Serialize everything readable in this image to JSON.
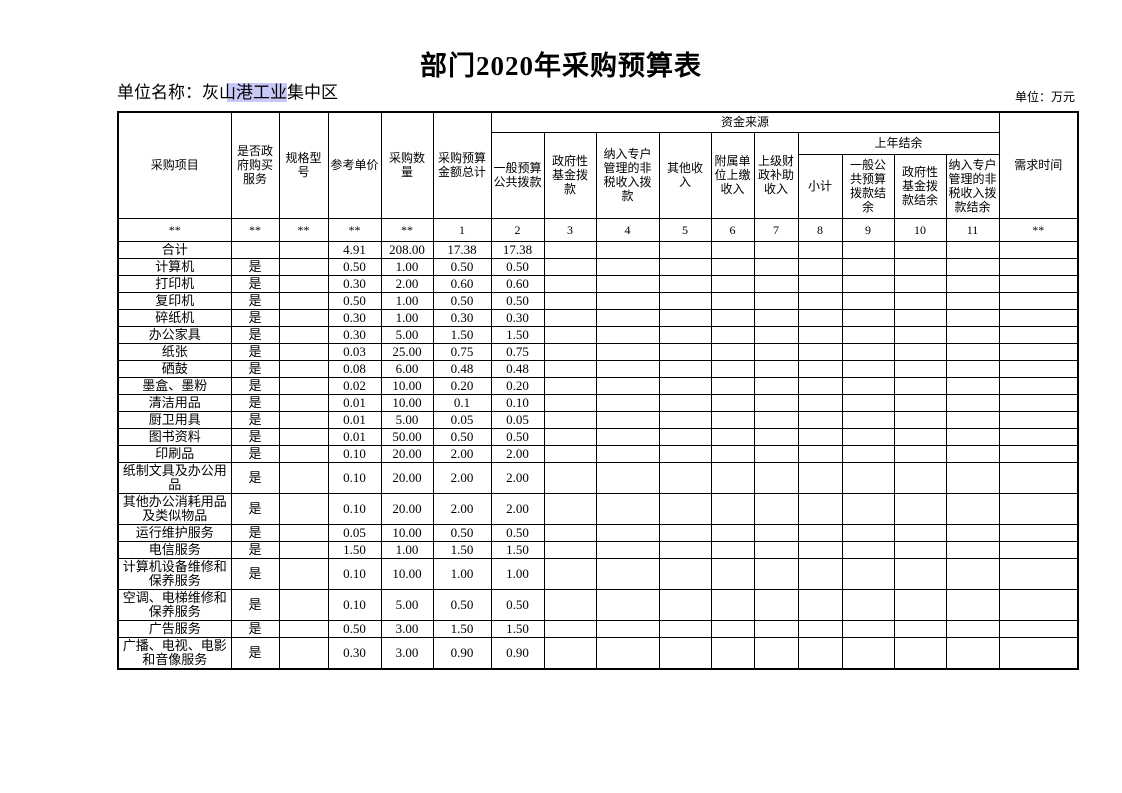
{
  "page": {
    "title": "部门2020年采购预算表",
    "unit_label": "单位名称：",
    "unit_name_pre": "灰",
    "unit_name_selected": "山港工业",
    "unit_name_post": "集中区",
    "unit_note": "单位：万元",
    "selection_highlight_color": "#c7c8f8"
  },
  "table": {
    "header": {
      "col_project": "采购项目",
      "col_gov_service": "是否政府购买服务",
      "col_spec": "规格型号",
      "col_unit_price": "参考单价",
      "col_quantity": "采购数量",
      "col_budget_total": "采购预算金额总计",
      "funding_source": "资金来源",
      "col_general_budget": "一般预算公共拨款",
      "col_gov_fund": "政府性基金拨款",
      "col_special_account": "纳入专户管理的非税收入拨款",
      "col_other_income": "其他收入",
      "col_subordinate_income": "附属单位上缴收入",
      "col_superior_subsidy": "上级财政补助收入",
      "last_year_balance": "上年结余",
      "col_subtotal": "小计",
      "col_general_balance": "一般公共预算拨款结余",
      "col_fund_balance": "政府性基金拨款结余",
      "col_special_balance": "纳入专户管理的非税收入拨款结余",
      "col_demand_time": "需求时间"
    },
    "id_row": [
      "**",
      "**",
      "**",
      "**",
      "**",
      "1",
      "2",
      "3",
      "4",
      "5",
      "6",
      "7",
      "8",
      "9",
      "10",
      "11",
      "**"
    ],
    "rows": [
      [
        "合计",
        "",
        "",
        "4.91",
        "208.00",
        "17.38",
        "17.38",
        "",
        "",
        "",
        "",
        "",
        "",
        "",
        "",
        "",
        ""
      ],
      [
        "计算机",
        "是",
        "",
        "0.50",
        "1.00",
        "0.50",
        "0.50",
        "",
        "",
        "",
        "",
        "",
        "",
        "",
        "",
        "",
        ""
      ],
      [
        "打印机",
        "是",
        "",
        "0.30",
        "2.00",
        "0.60",
        "0.60",
        "",
        "",
        "",
        "",
        "",
        "",
        "",
        "",
        "",
        ""
      ],
      [
        "复印机",
        "是",
        "",
        "0.50",
        "1.00",
        "0.50",
        "0.50",
        "",
        "",
        "",
        "",
        "",
        "",
        "",
        "",
        "",
        ""
      ],
      [
        "碎纸机",
        "是",
        "",
        "0.30",
        "1.00",
        "0.30",
        "0.30",
        "",
        "",
        "",
        "",
        "",
        "",
        "",
        "",
        "",
        ""
      ],
      [
        "办公家具",
        "是",
        "",
        "0.30",
        "5.00",
        "1.50",
        "1.50",
        "",
        "",
        "",
        "",
        "",
        "",
        "",
        "",
        "",
        ""
      ],
      [
        "纸张",
        "是",
        "",
        "0.03",
        "25.00",
        "0.75",
        "0.75",
        "",
        "",
        "",
        "",
        "",
        "",
        "",
        "",
        "",
        ""
      ],
      [
        "硒鼓",
        "是",
        "",
        "0.08",
        "6.00",
        "0.48",
        "0.48",
        "",
        "",
        "",
        "",
        "",
        "",
        "",
        "",
        "",
        ""
      ],
      [
        "墨盒、墨粉",
        "是",
        "",
        "0.02",
        "10.00",
        "0.20",
        "0.20",
        "",
        "",
        "",
        "",
        "",
        "",
        "",
        "",
        "",
        ""
      ],
      [
        "清洁用品",
        "是",
        "",
        "0.01",
        "10.00",
        "0.1",
        "0.10",
        "",
        "",
        "",
        "",
        "",
        "",
        "",
        "",
        "",
        ""
      ],
      [
        "厨卫用具",
        "是",
        "",
        "0.01",
        "5.00",
        "0.05",
        "0.05",
        "",
        "",
        "",
        "",
        "",
        "",
        "",
        "",
        "",
        ""
      ],
      [
        "图书资料",
        "是",
        "",
        "0.01",
        "50.00",
        "0.50",
        "0.50",
        "",
        "",
        "",
        "",
        "",
        "",
        "",
        "",
        "",
        ""
      ],
      [
        "印刷品",
        "是",
        "",
        "0.10",
        "20.00",
        "2.00",
        "2.00",
        "",
        "",
        "",
        "",
        "",
        "",
        "",
        "",
        "",
        ""
      ],
      [
        "纸制文具及办公用品",
        "是",
        "",
        "0.10",
        "20.00",
        "2.00",
        "2.00",
        "",
        "",
        "",
        "",
        "",
        "",
        "",
        "",
        "",
        ""
      ],
      [
        "其他办公消耗用品及类似物品",
        "是",
        "",
        "0.10",
        "20.00",
        "2.00",
        "2.00",
        "",
        "",
        "",
        "",
        "",
        "",
        "",
        "",
        "",
        ""
      ],
      [
        "运行维护服务",
        "是",
        "",
        "0.05",
        "10.00",
        "0.50",
        "0.50",
        "",
        "",
        "",
        "",
        "",
        "",
        "",
        "",
        "",
        ""
      ],
      [
        "电信服务",
        "是",
        "",
        "1.50",
        "1.00",
        "1.50",
        "1.50",
        "",
        "",
        "",
        "",
        "",
        "",
        "",
        "",
        "",
        ""
      ],
      [
        "计算机设备维修和保养服务",
        "是",
        "",
        "0.10",
        "10.00",
        "1.00",
        "1.00",
        "",
        "",
        "",
        "",
        "",
        "",
        "",
        "",
        "",
        ""
      ],
      [
        "空调、电梯维修和保养服务",
        "是",
        "",
        "0.10",
        "5.00",
        "0.50",
        "0.50",
        "",
        "",
        "",
        "",
        "",
        "",
        "",
        "",
        "",
        ""
      ],
      [
        "广告服务",
        "是",
        "",
        "0.50",
        "3.00",
        "1.50",
        "1.50",
        "",
        "",
        "",
        "",
        "",
        "",
        "",
        "",
        "",
        ""
      ],
      [
        "广播、电视、电影和音像服务",
        "是",
        "",
        "0.30",
        "3.00",
        "0.90",
        "0.90",
        "",
        "",
        "",
        "",
        "",
        "",
        "",
        "",
        "",
        ""
      ]
    ]
  }
}
